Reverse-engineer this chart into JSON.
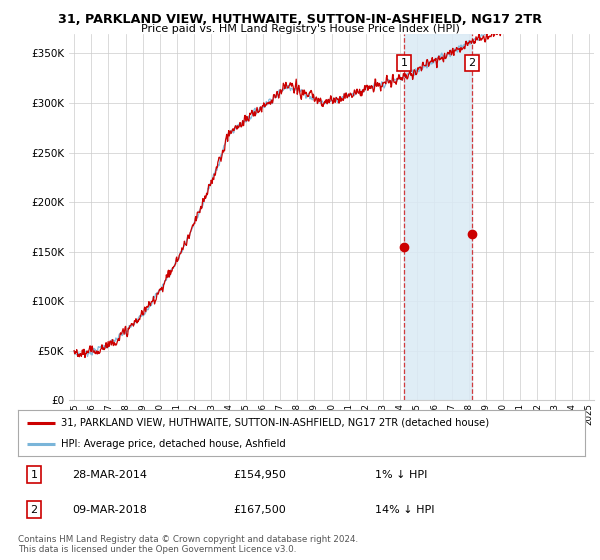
{
  "title": "31, PARKLAND VIEW, HUTHWAITE, SUTTON-IN-ASHFIELD, NG17 2TR",
  "subtitle": "Price paid vs. HM Land Registry's House Price Index (HPI)",
  "ylabel_ticks": [
    "£0",
    "£50K",
    "£100K",
    "£150K",
    "£200K",
    "£250K",
    "£300K",
    "£350K"
  ],
  "ytick_values": [
    0,
    50000,
    100000,
    150000,
    200000,
    250000,
    300000,
    350000
  ],
  "ylim": [
    0,
    370000
  ],
  "sale1": {
    "date": "28-MAR-2014",
    "price": 154950,
    "label": "1",
    "x_year": 2014.23
  },
  "sale2": {
    "date": "09-MAR-2018",
    "price": 167500,
    "label": "2",
    "x_year": 2018.19
  },
  "legend_line1": "31, PARKLAND VIEW, HUTHWAITE, SUTTON-IN-ASHFIELD, NG17 2TR (detached house)",
  "legend_line2": "HPI: Average price, detached house, Ashfield",
  "footnote1": "Contains HM Land Registry data © Crown copyright and database right 2024.",
  "footnote2": "This data is licensed under the Open Government Licence v3.0.",
  "hpi_color": "#7ab5d9",
  "price_color": "#cc0000",
  "shade_color": "#daeaf5",
  "grid_color": "#cccccc",
  "bg_color": "#ffffff",
  "xlim_start": 1994.7,
  "xlim_end": 2025.3
}
